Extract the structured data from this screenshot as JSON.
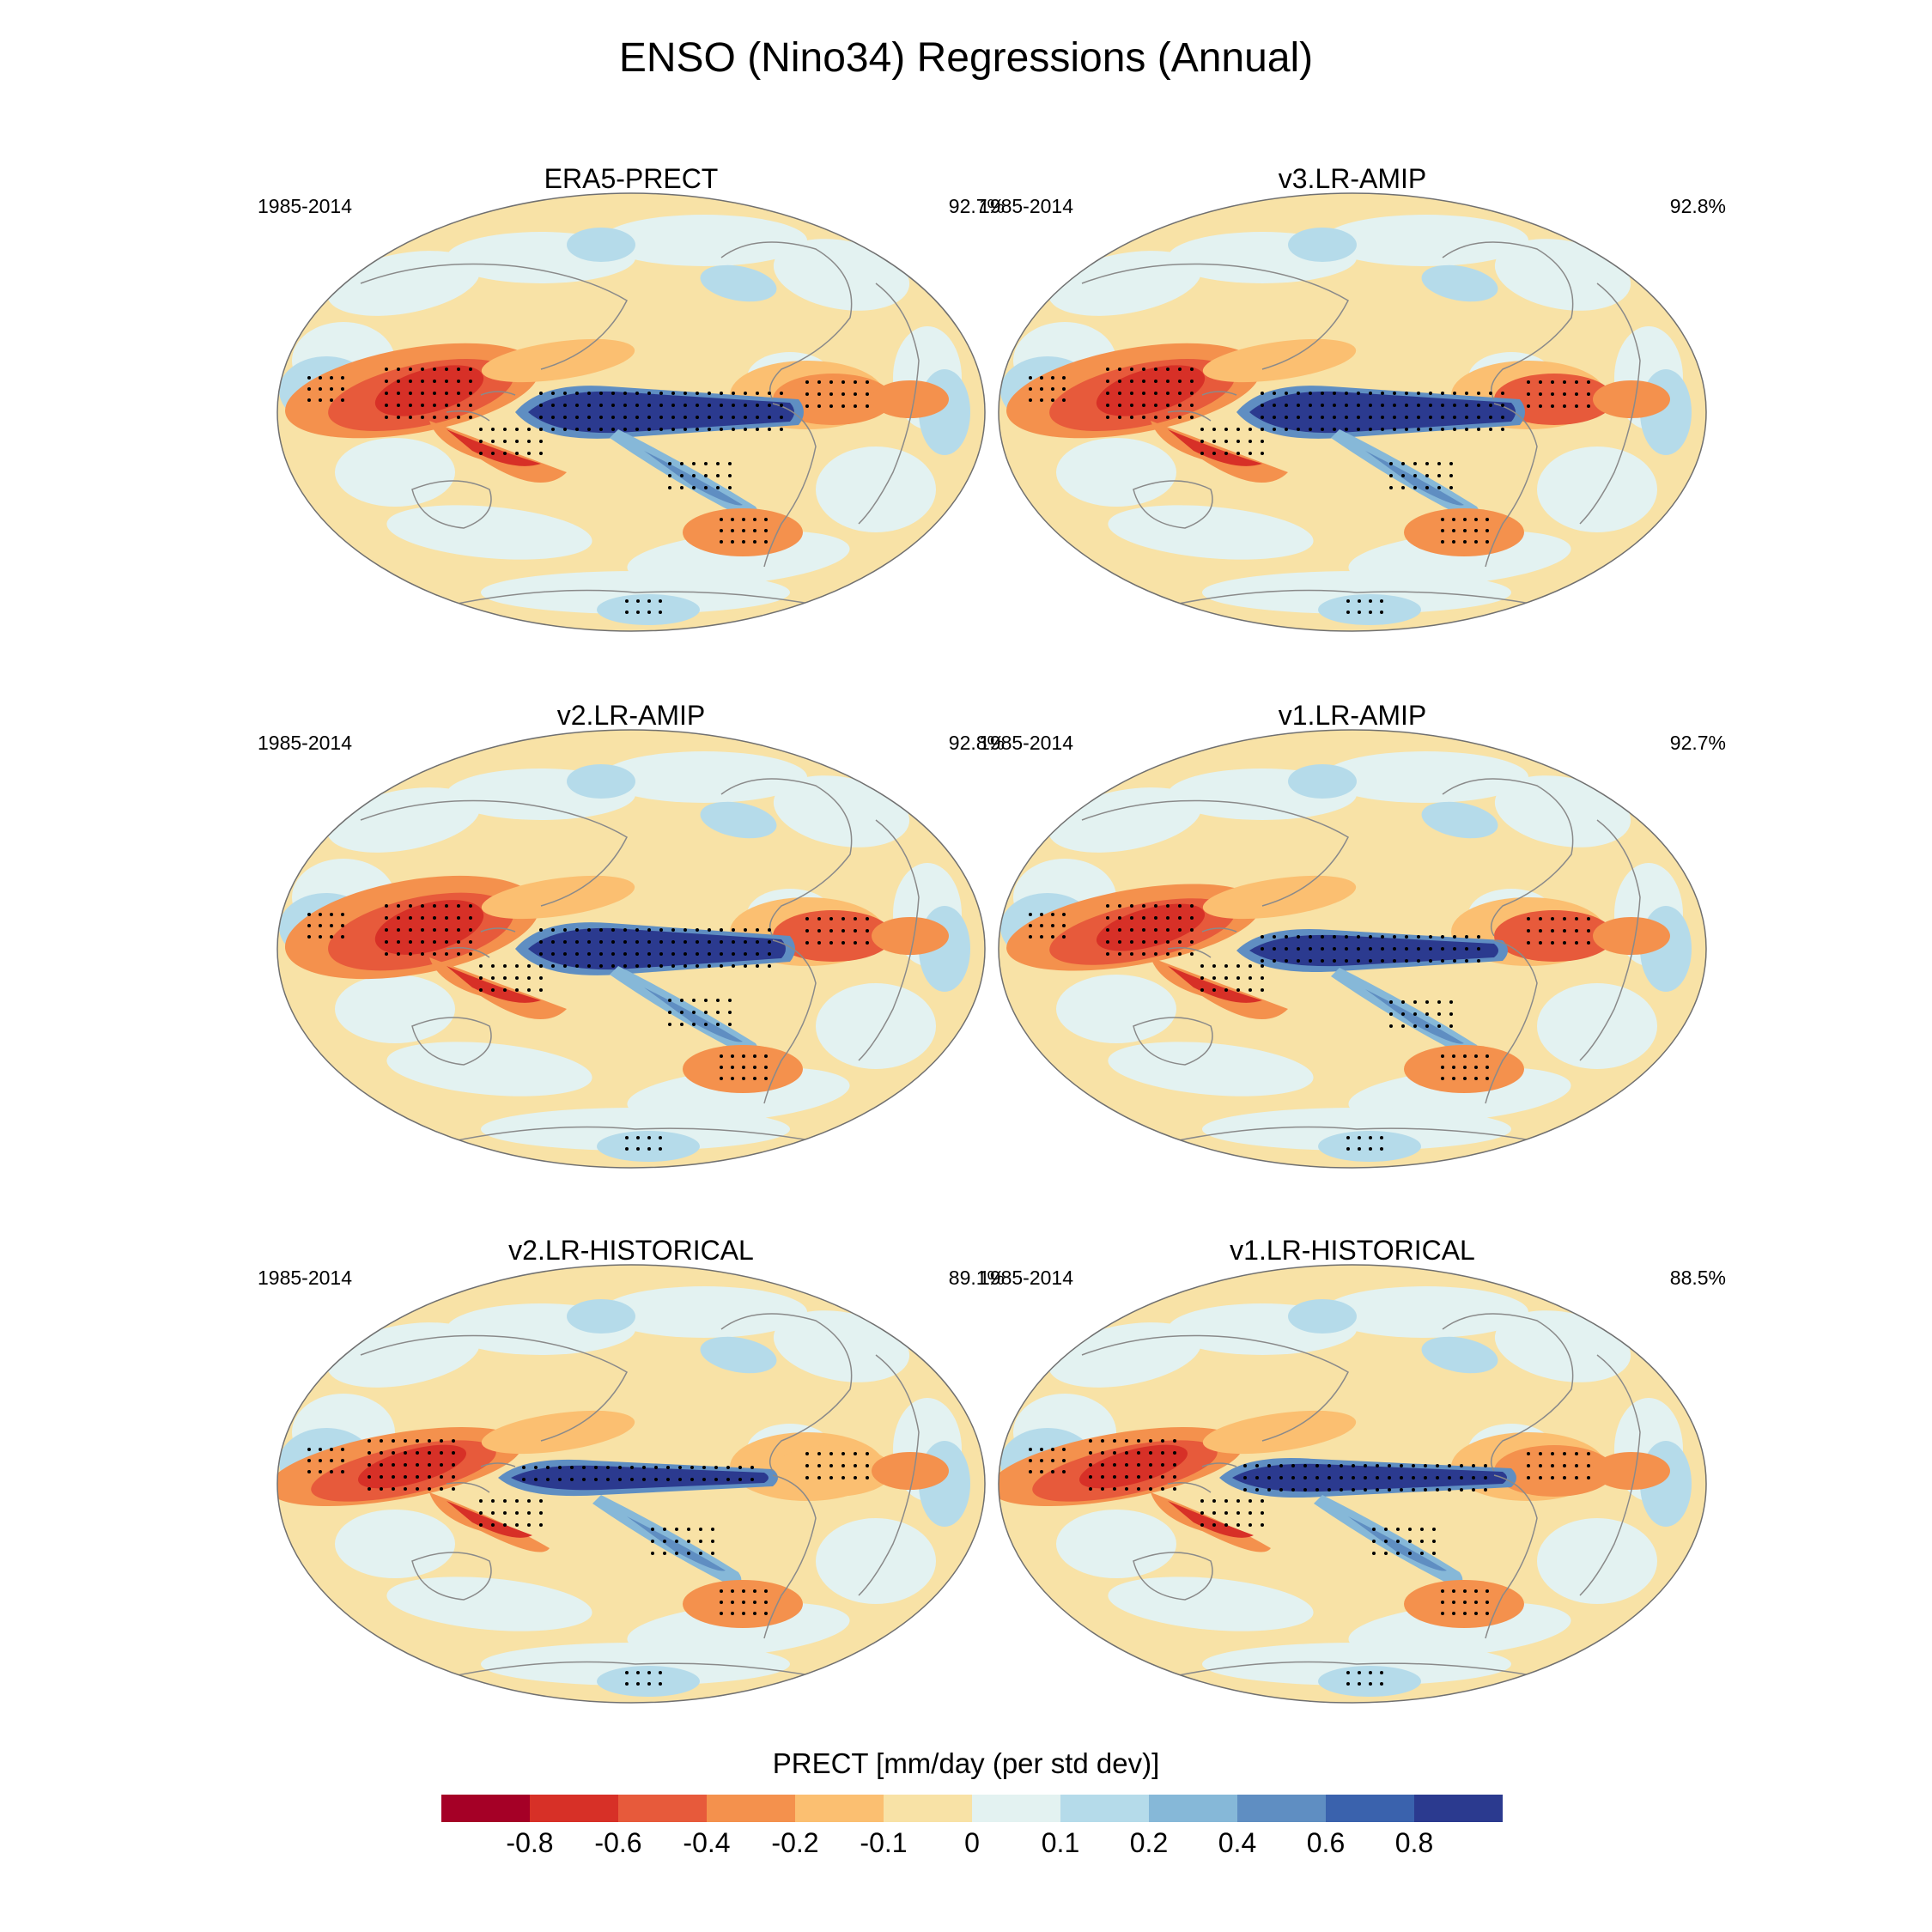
{
  "figure": {
    "title": "ENSO (Nino34) Regressions (Annual)"
  },
  "panels": [
    {
      "title": "ERA5-PRECT",
      "period": "1985-2014",
      "pattern_correlation": "92.7%"
    },
    {
      "title": "v3.LR-AMIP",
      "period": "1985-2014",
      "pattern_correlation": "92.8%"
    },
    {
      "title": "v2.LR-AMIP",
      "period": "1985-2014",
      "pattern_correlation": "92.8%"
    },
    {
      "title": "v1.LR-AMIP",
      "period": "1985-2014",
      "pattern_correlation": "92.7%"
    },
    {
      "title": "v2.LR-HISTORICAL",
      "period": "1985-2014",
      "pattern_correlation": "89.1%"
    },
    {
      "title": "v1.LR-HISTORICAL",
      "period": "1985-2014",
      "pattern_correlation": "88.5%"
    }
  ],
  "colorbar": {
    "title": "PRECT [mm/day (per std dev)]",
    "labels": [
      "-0.8",
      "-0.6",
      "-0.4",
      "-0.2",
      "-0.1",
      "0",
      "0.1",
      "0.2",
      "0.4",
      "0.6",
      "0.8"
    ],
    "colors": [
      "#a50026",
      "#d73027",
      "#e75a3b",
      "#f4914d",
      "#fbbf71",
      "#f8e2a6",
      "#e3f2f1",
      "#b5dbea",
      "#86b8d8",
      "#5f8ec2",
      "#3a62ad",
      "#2b3a8f"
    ]
  },
  "colors": {
    "land_outline": "#8a8a8a",
    "map_border": "#707070"
  }
}
